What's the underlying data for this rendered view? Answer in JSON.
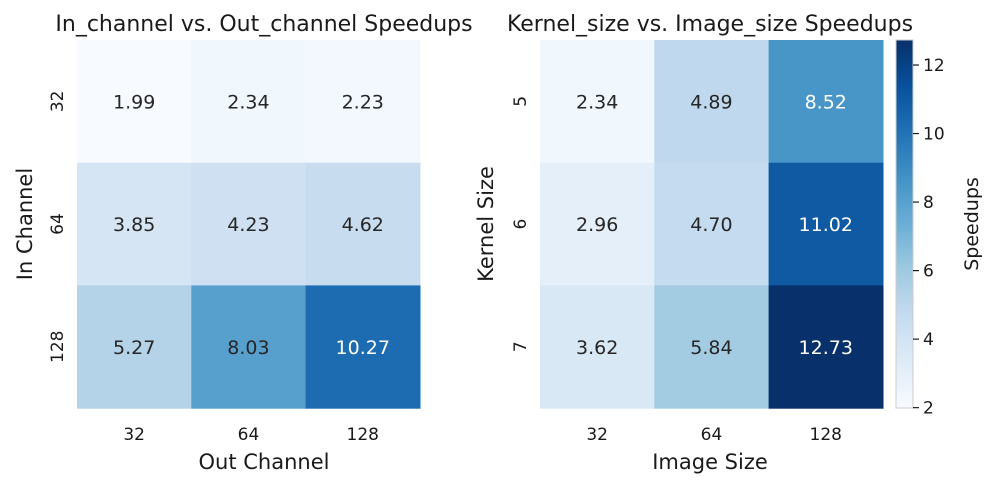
{
  "chart_data": [
    {
      "type": "heatmap",
      "title": "In_channel vs. Out_channel Speedups",
      "xlabel": "Out Channel",
      "ylabel": "In Channel",
      "x_categories": [
        "32",
        "64",
        "128"
      ],
      "y_categories": [
        "32",
        "64",
        "128"
      ],
      "values": [
        [
          1.99,
          2.34,
          2.23
        ],
        [
          3.85,
          4.23,
          4.62
        ],
        [
          5.27,
          8.03,
          10.27
        ]
      ],
      "value_labels": [
        [
          "1.99",
          "2.34",
          "2.23"
        ],
        [
          "3.85",
          "4.23",
          "4.62"
        ],
        [
          "5.27",
          "8.03",
          "10.27"
        ]
      ]
    },
    {
      "type": "heatmap",
      "title": "Kernel_size vs. Image_size Speedups",
      "xlabel": "Image Size",
      "ylabel": "Kernel Size",
      "x_categories": [
        "32",
        "64",
        "128"
      ],
      "y_categories": [
        "5",
        "6",
        "7"
      ],
      "values": [
        [
          2.34,
          4.89,
          8.52
        ],
        [
          2.96,
          4.7,
          11.02
        ],
        [
          3.62,
          5.84,
          12.73
        ]
      ],
      "value_labels": [
        [
          "2.34",
          "4.89",
          "8.52"
        ],
        [
          "2.96",
          "4.70",
          "11.02"
        ],
        [
          "3.62",
          "5.84",
          "12.73"
        ]
      ]
    }
  ],
  "colorbar": {
    "label": "Speedups",
    "range": [
      1.99,
      12.73
    ],
    "ticks": [
      2,
      4,
      6,
      8,
      10,
      12
    ],
    "tick_labels": [
      "2",
      "4",
      "6",
      "8",
      "10",
      "12"
    ],
    "colormap": "Blues",
    "colors": [
      "#f7fbff",
      "#deebf7",
      "#c6dbef",
      "#9ecae1",
      "#6baed6",
      "#4292c6",
      "#2171b5",
      "#08519c",
      "#08306b"
    ]
  }
}
